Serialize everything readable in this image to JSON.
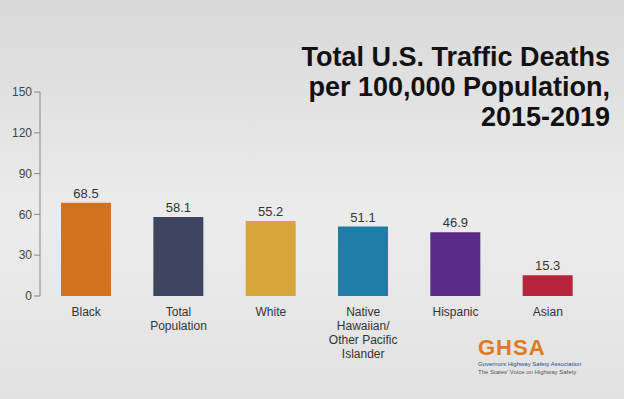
{
  "chart_data": {
    "type": "bar",
    "title": "Total U.S. Traffic Deaths per 100,000 Population, 2015-2019",
    "categories": [
      "Black",
      "Total Population",
      "White",
      "Native Hawaiian/ Other Pacific Islander",
      "Hispanic",
      "Asian"
    ],
    "values": [
      68.5,
      58.1,
      55.2,
      51.1,
      46.9,
      15.3
    ],
    "colors": [
      "#d4731f",
      "#3f4560",
      "#d9a53a",
      "#1f7ea8",
      "#5b2a86",
      "#b5243a"
    ],
    "ylim": [
      0,
      150
    ],
    "yticks": [
      0,
      30,
      60,
      90,
      120,
      150
    ],
    "grid": false,
    "data_labels": true,
    "annotations": [
      "GHSA",
      "Governors Highway Safety Association",
      "The States' Voice on Highway Safety"
    ]
  }
}
